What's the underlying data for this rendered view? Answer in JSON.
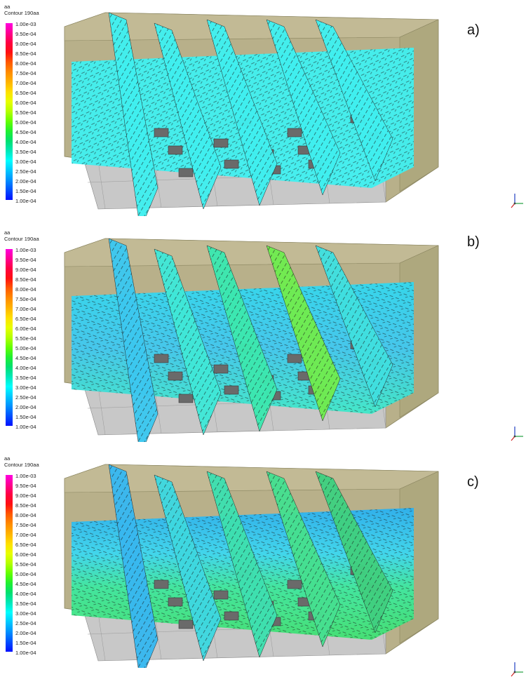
{
  "legend": {
    "var": "aa",
    "title": "Contour 190aa",
    "levels": [
      "1.00e-03",
      "9.50e-04",
      "9.00e-04",
      "8.50e-04",
      "8.00e-04",
      "7.50e-04",
      "7.00e-04",
      "6.50e-04",
      "6.00e-04",
      "5.50e-04",
      "5.00e-04",
      "4.50e-04",
      "4.00e-04",
      "3.50e-04",
      "3.00e-04",
      "2.50e-04",
      "2.00e-04",
      "1.50e-04",
      "1.00e-04"
    ],
    "colors": [
      "#ff00e0",
      "#ff0090",
      "#ff0040",
      "#ff1010",
      "#ff5a00",
      "#ff8c00",
      "#ffb400",
      "#ffe000",
      "#e8ff00",
      "#b4ff00",
      "#64ff00",
      "#20f030",
      "#00e070",
      "#00e8b8",
      "#00ffff",
      "#00c8ff",
      "#0090ff",
      "#0050ff",
      "#0010ff"
    ]
  },
  "panels": [
    {
      "label": "a)"
    },
    {
      "label": "b)"
    },
    {
      "label": "c)"
    }
  ]
}
